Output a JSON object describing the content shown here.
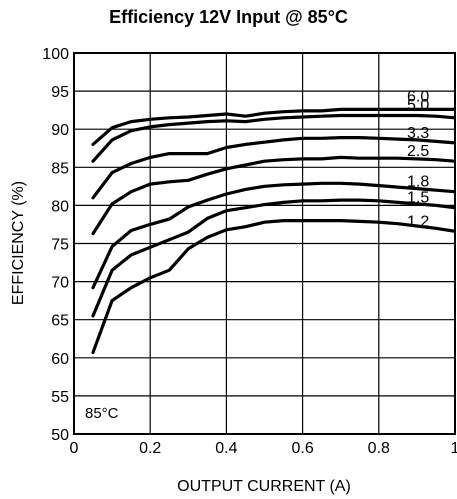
{
  "chart_data": {
    "type": "line",
    "title": "Efficiency 12V Input @ 85°C",
    "xlabel": "OUTPUT CURRENT (A)",
    "ylabel": "EFFICIENCY (%)",
    "xlim": [
      0,
      1
    ],
    "ylim": [
      50,
      100
    ],
    "x_ticks": [
      0,
      0.2,
      0.4,
      0.6,
      0.8,
      1
    ],
    "x_tick_labels": [
      "0",
      "0.2",
      "0.4",
      "0.6",
      "0.8",
      "1"
    ],
    "y_ticks": [
      50,
      55,
      60,
      65,
      70,
      75,
      80,
      85,
      90,
      95,
      100
    ],
    "y_tick_labels": [
      "50",
      "55",
      "60",
      "65",
      "70",
      "75",
      "80",
      "85",
      "90",
      "95",
      "100"
    ],
    "grid": true,
    "annotation": "85°C",
    "series": [
      {
        "name": "6.0",
        "x": [
          0.05,
          0.1,
          0.15,
          0.2,
          0.25,
          0.3,
          0.35,
          0.4,
          0.45,
          0.5,
          0.55,
          0.6,
          0.65,
          0.7,
          0.75,
          0.8,
          0.85,
          0.9,
          0.95,
          1.0
        ],
        "values": [
          88,
          90.2,
          91,
          91.3,
          91.5,
          91.6,
          91.8,
          92,
          91.7,
          92.1,
          92.3,
          92.4,
          92.4,
          92.6,
          92.6,
          92.6,
          92.6,
          92.6,
          92.6,
          92.6
        ]
      },
      {
        "name": "5.0",
        "x": [
          0.05,
          0.1,
          0.15,
          0.2,
          0.25,
          0.3,
          0.35,
          0.4,
          0.45,
          0.5,
          0.55,
          0.6,
          0.65,
          0.7,
          0.75,
          0.8,
          0.85,
          0.9,
          0.95,
          1.0
        ],
        "values": [
          85.8,
          88.6,
          89.8,
          90.3,
          90.6,
          90.8,
          91,
          91.1,
          91,
          91.3,
          91.5,
          91.6,
          91.7,
          91.8,
          91.8,
          91.8,
          91.8,
          91.8,
          91.7,
          91.5
        ]
      },
      {
        "name": "3.3",
        "x": [
          0.05,
          0.1,
          0.15,
          0.2,
          0.25,
          0.3,
          0.35,
          0.4,
          0.45,
          0.5,
          0.55,
          0.6,
          0.65,
          0.7,
          0.75,
          0.8,
          0.85,
          0.9,
          0.95,
          1.0
        ],
        "values": [
          81,
          84.3,
          85.5,
          86.3,
          86.8,
          86.8,
          86.8,
          87.6,
          88,
          88.3,
          88.6,
          88.8,
          88.8,
          88.9,
          88.9,
          88.8,
          88.7,
          88.6,
          88.4,
          88.2
        ]
      },
      {
        "name": "2.5",
        "x": [
          0.05,
          0.1,
          0.15,
          0.2,
          0.25,
          0.3,
          0.35,
          0.4,
          0.45,
          0.5,
          0.55,
          0.6,
          0.65,
          0.7,
          0.75,
          0.8,
          0.85,
          0.9,
          0.95,
          1.0
        ],
        "values": [
          76.3,
          80.2,
          81.8,
          82.8,
          83.1,
          83.3,
          84.1,
          84.8,
          85.3,
          85.8,
          86,
          86.1,
          86.1,
          86.3,
          86.2,
          86.2,
          86.2,
          86.1,
          86,
          85.8
        ]
      },
      {
        "name": "1.8",
        "x": [
          0.05,
          0.1,
          0.15,
          0.2,
          0.25,
          0.3,
          0.35,
          0.4,
          0.45,
          0.5,
          0.55,
          0.6,
          0.65,
          0.7,
          0.75,
          0.8,
          0.85,
          0.9,
          0.95,
          1.0
        ],
        "values": [
          69.2,
          74.6,
          76.7,
          77.5,
          78.2,
          79.8,
          80.7,
          81.5,
          82.1,
          82.5,
          82.7,
          82.8,
          82.9,
          82.9,
          82.8,
          82.6,
          82.4,
          82.2,
          82,
          81.8
        ]
      },
      {
        "name": "1.5",
        "x": [
          0.05,
          0.1,
          0.15,
          0.2,
          0.25,
          0.3,
          0.35,
          0.4,
          0.45,
          0.5,
          0.55,
          0.6,
          0.65,
          0.7,
          0.75,
          0.8,
          0.85,
          0.9,
          0.95,
          1.0
        ],
        "values": [
          65.5,
          71.5,
          73.5,
          74.5,
          75.5,
          76.5,
          78.3,
          79.3,
          79.7,
          80.1,
          80.4,
          80.6,
          80.6,
          80.7,
          80.7,
          80.6,
          80.4,
          80.2,
          80,
          79.7
        ]
      },
      {
        "name": "1.2",
        "x": [
          0.05,
          0.1,
          0.15,
          0.2,
          0.25,
          0.3,
          0.35,
          0.4,
          0.45,
          0.5,
          0.55,
          0.6,
          0.65,
          0.7,
          0.75,
          0.8,
          0.85,
          0.9,
          0.95,
          1.0
        ],
        "values": [
          60.7,
          67.5,
          69.2,
          70.5,
          71.5,
          74.3,
          75.8,
          76.8,
          77.2,
          77.8,
          78,
          78,
          78,
          78,
          77.9,
          77.8,
          77.6,
          77.3,
          77,
          76.6
        ]
      }
    ]
  }
}
